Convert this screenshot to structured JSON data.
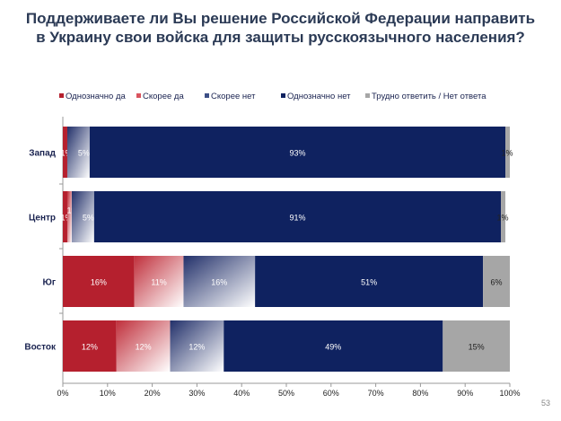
{
  "page_number": "53",
  "chart_data": {
    "type": "bar",
    "stacked": true,
    "orientation": "horizontal",
    "title": [
      "Поддерживаете ли Вы решение Российской Федерации направить",
      "в Украину свои войска для защиты русскоязычного населения?"
    ],
    "categories": [
      "Запад",
      "Центр",
      "Юг",
      "Восток"
    ],
    "series": [
      {
        "name": "Однозначно да",
        "color": "#b5202e",
        "values": [
          1,
          1,
          16,
          12
        ],
        "labels": [
          "1%",
          "1%",
          "16%",
          "12%"
        ]
      },
      {
        "name": "Скорее да",
        "color": "#d9545e",
        "values": [
          0,
          1,
          11,
          12
        ],
        "labels": [
          "",
          "1%",
          "11%",
          "12%"
        ]
      },
      {
        "name": "Скорее нет",
        "color": "#3d4f86",
        "values": [
          5,
          5,
          16,
          12
        ],
        "labels": [
          "5%",
          "5%",
          "16%",
          "12%"
        ]
      },
      {
        "name": "Однозначно нет",
        "color": "#0f2260",
        "values": [
          93,
          91,
          51,
          49
        ],
        "labels": [
          "93%",
          "91%",
          "51%",
          "49%"
        ]
      },
      {
        "name": "Трудно ответить / Нет ответа",
        "color": "#a6a6a6",
        "values": [
          1,
          1,
          6,
          15
        ],
        "labels": [
          "1%",
          "1%",
          "6%",
          "15%"
        ]
      }
    ],
    "xlim": [
      0,
      100
    ],
    "xticks": [
      "0%",
      "10%",
      "20%",
      "30%",
      "40%",
      "50%",
      "60%",
      "70%",
      "80%",
      "90%",
      "100%"
    ],
    "legend": "top"
  }
}
